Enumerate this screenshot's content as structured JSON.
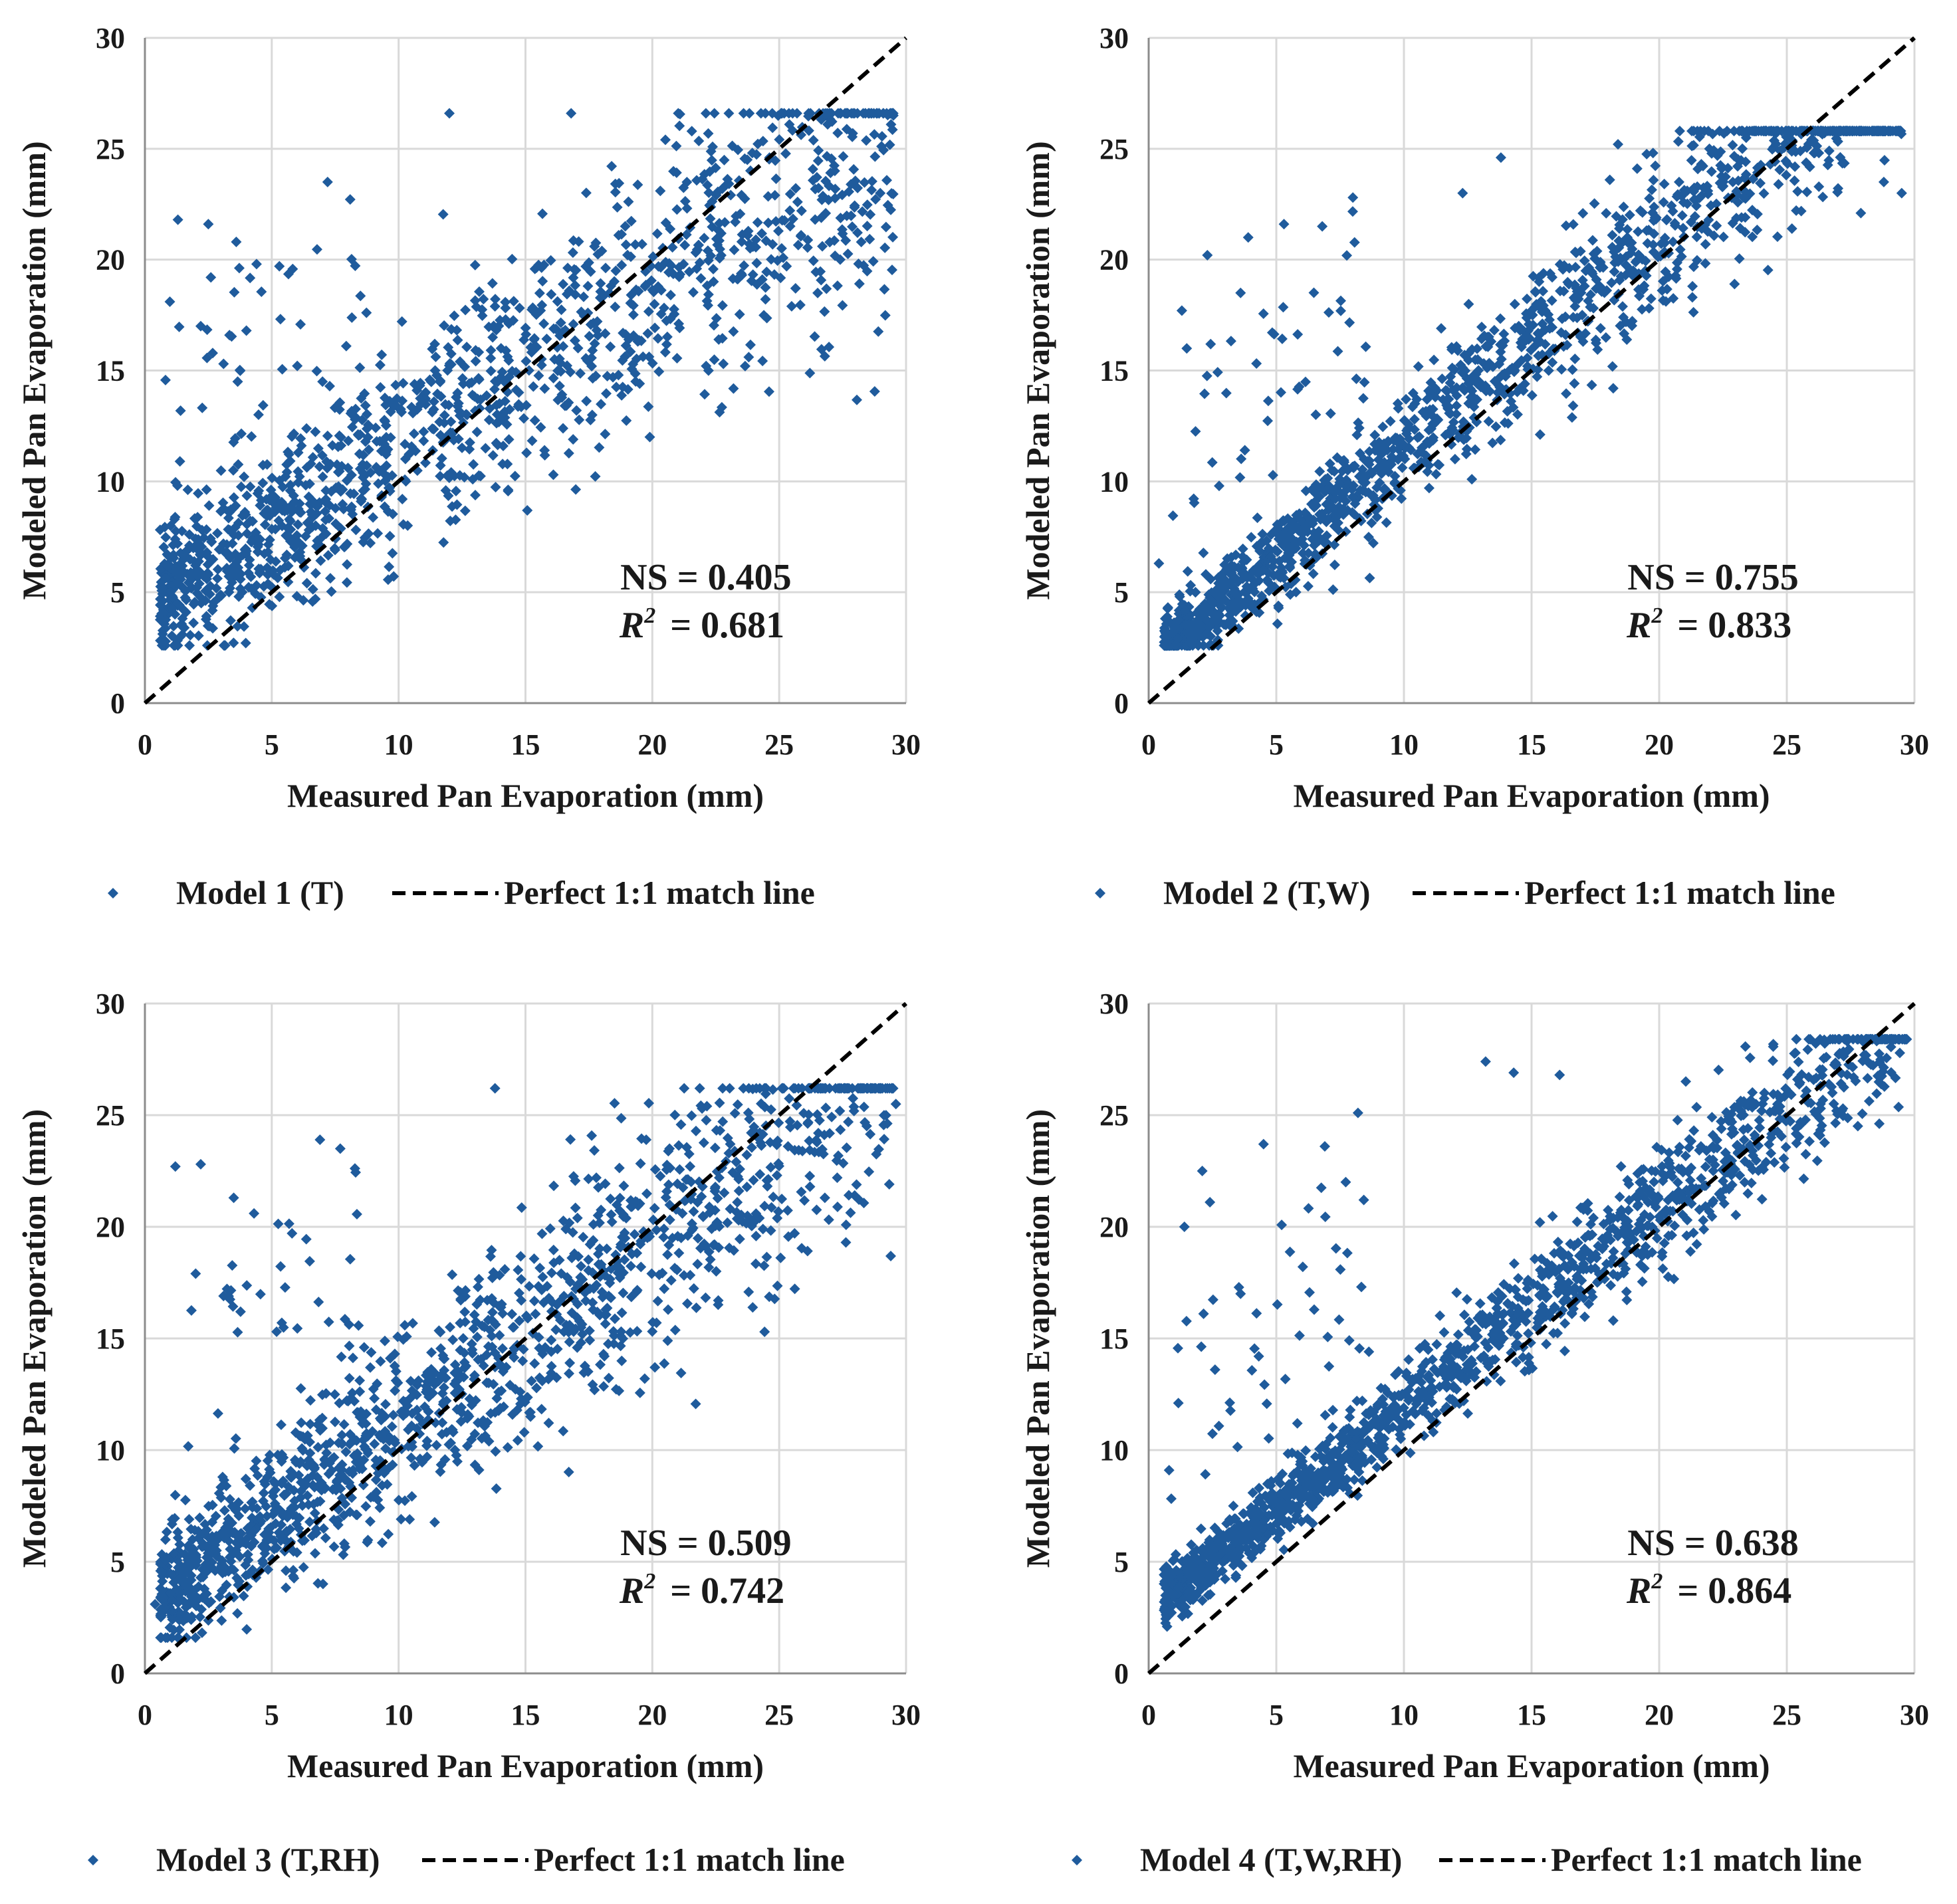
{
  "figure": {
    "legend_match_label": "Perfect 1:1 match line",
    "colors": {
      "points": "#1f5b9c",
      "match_line": "#000000",
      "grid": "#d9d9d9"
    }
  },
  "chart_data": [
    {
      "type": "scatter",
      "id": "model1",
      "series_name": "Model 1 (T)",
      "xlabel": "Measured Pan Evaporation (mm)",
      "ylabel": "Modeled Pan Evaporation (mm)",
      "xlim": [
        0,
        30
      ],
      "ylim": [
        0,
        30
      ],
      "xticks": [
        "0",
        "5",
        "10",
        "15",
        "20",
        "25",
        "30"
      ],
      "yticks": [
        "0",
        "5",
        "10",
        "15",
        "20",
        "25",
        "30"
      ],
      "ns_label": "NS = 0.405",
      "r2_label": "R",
      "r2_sup": "2",
      "r2_value": "= 0.681",
      "ns": 0.405,
      "r2": 0.681,
      "cloud": {
        "count": 1400,
        "slope": 0.72,
        "intercept": 4.4,
        "noise": 2.6,
        "min_y": 2.6,
        "max_y": 26.6,
        "x_max": 29.5,
        "outliers": 40,
        "seed": 11
      },
      "points": [
        [
          1.3,
          21.8
        ],
        [
          2.5,
          21.6
        ],
        [
          2.2,
          17.0
        ],
        [
          3.1,
          15.3
        ],
        [
          3.6,
          20.8
        ],
        [
          4.4,
          19.8
        ],
        [
          5.3,
          19.7
        ],
        [
          4.0,
          16.8
        ],
        [
          7.2,
          23.5
        ],
        [
          19.9,
          12.0
        ],
        [
          16.1,
          10.3
        ],
        [
          29.5,
          26.5
        ],
        [
          27.4,
          26.6
        ],
        [
          26.7,
          20.6
        ],
        [
          22.8,
          15.3
        ],
        [
          2.6,
          19.2
        ],
        [
          12.0,
          26.6
        ],
        [
          16.8,
          26.6
        ]
      ]
    },
    {
      "type": "scatter",
      "id": "model2",
      "series_name": "Model 2 (T,W)",
      "xlabel": "Measured Pan Evaporation (mm)",
      "ylabel": "Modeled Pan Evaporation (mm)",
      "xlim": [
        0,
        30
      ],
      "ylim": [
        0,
        30
      ],
      "xticks": [
        "0",
        "5",
        "10",
        "15",
        "20",
        "25",
        "30"
      ],
      "yticks": [
        "0",
        "5",
        "10",
        "15",
        "20",
        "25",
        "30"
      ],
      "ns_label": "NS = 0.755",
      "r2_label": "R",
      "r2_sup": "2",
      "r2_value": "= 0.833",
      "ns": 0.755,
      "r2": 0.833,
      "cloud": {
        "count": 1500,
        "slope": 0.96,
        "intercept": 1.9,
        "noise": 1.5,
        "min_y": 2.6,
        "max_y": 25.8,
        "x_max": 29.5,
        "outliers": 45,
        "seed": 23
      },
      "points": [
        [
          1.3,
          17.7
        ],
        [
          2.3,
          20.2
        ],
        [
          3.9,
          21.0
        ],
        [
          5.3,
          21.6
        ],
        [
          6.8,
          21.5
        ],
        [
          8.0,
          22.8
        ],
        [
          13.8,
          24.6
        ],
        [
          12.3,
          23.0
        ],
        [
          29.5,
          23.0
        ],
        [
          28.8,
          23.5
        ],
        [
          27.9,
          22.1
        ],
        [
          25.2,
          21.4
        ],
        [
          21.3,
          18.3
        ],
        [
          18.2,
          14.2
        ],
        [
          0.4,
          6.3
        ],
        [
          3.6,
          18.5
        ]
      ]
    },
    {
      "type": "scatter",
      "id": "model3",
      "series_name": "Model 3 (T,RH)",
      "xlabel": "Measured Pan Evaporation (mm)",
      "ylabel": "Modeled Pan Evaporation (mm)",
      "xlim": [
        0,
        30
      ],
      "ylim": [
        0,
        30
      ],
      "xticks": [
        "0",
        "5",
        "10",
        "15",
        "20",
        "25",
        "30"
      ],
      "yticks": [
        "0",
        "5",
        "10",
        "15",
        "20",
        "25",
        "30"
      ],
      "ns_label": "NS = 0.509",
      "r2_label": "R",
      "r2_sup": "2",
      "r2_value": "= 0.742",
      "ns": 0.509,
      "r2": 0.742,
      "cloud": {
        "count": 1450,
        "slope": 0.82,
        "intercept": 2.9,
        "noise": 2.3,
        "min_y": 1.6,
        "max_y": 26.2,
        "x_max": 29.5,
        "outliers": 40,
        "seed": 37
      },
      "points": [
        [
          1.2,
          22.7
        ],
        [
          2.2,
          22.8
        ],
        [
          3.5,
          21.3
        ],
        [
          4.3,
          20.6
        ],
        [
          6.9,
          23.9
        ],
        [
          7.7,
          23.5
        ],
        [
          2.0,
          17.9
        ],
        [
          3.1,
          16.9
        ],
        [
          13.8,
          26.2
        ],
        [
          19.7,
          13.2
        ],
        [
          15.2,
          11.5
        ],
        [
          29.6,
          25.5
        ],
        [
          26.8,
          21.3
        ],
        [
          22.6,
          16.7
        ],
        [
          0.4,
          3.1
        ]
      ]
    },
    {
      "type": "scatter",
      "id": "model4",
      "series_name": "Model 4 (T,W,RH)",
      "xlabel": "Measured Pan Evaporation (mm)",
      "ylabel": "Modeled Pan Evaporation (mm)",
      "xlim": [
        0,
        30
      ],
      "ylim": [
        0,
        30
      ],
      "xticks": [
        "0",
        "5",
        "10",
        "15",
        "20",
        "25",
        "30"
      ],
      "yticks": [
        "0",
        "5",
        "10",
        "15",
        "20",
        "25",
        "30"
      ],
      "ns_label": "NS = 0.638",
      "r2_label": "R",
      "r2_sup": "2",
      "r2_value": "= 0.864",
      "ns": 0.638,
      "r2": 0.864,
      "cloud": {
        "count": 1550,
        "slope": 0.91,
        "intercept": 2.8,
        "noise": 1.1,
        "min_y": 2.1,
        "max_y": 28.4,
        "x_max": 29.7,
        "outliers": 45,
        "seed": 53
      },
      "points": [
        [
          1.4,
          20.0
        ],
        [
          2.1,
          22.5
        ],
        [
          2.4,
          21.1
        ],
        [
          4.5,
          23.7
        ],
        [
          6.9,
          23.6
        ],
        [
          8.2,
          25.1
        ],
        [
          13.2,
          27.4
        ],
        [
          14.3,
          26.9
        ],
        [
          16.1,
          26.8
        ],
        [
          18.2,
          15.8
        ],
        [
          21.1,
          20.3
        ],
        [
          29.6,
          28.4
        ],
        [
          0.8,
          9.1
        ],
        [
          3.6,
          17.0
        ],
        [
          2.6,
          13.6
        ]
      ]
    }
  ]
}
